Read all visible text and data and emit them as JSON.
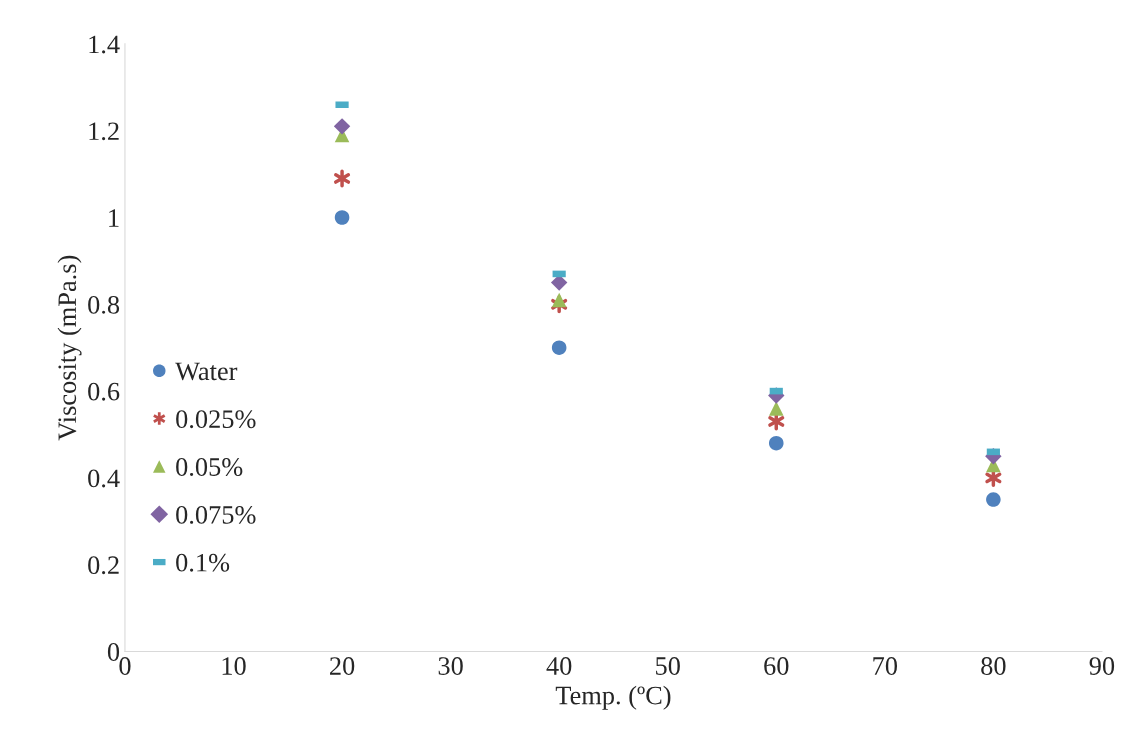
{
  "chart_data": {
    "type": "scatter",
    "xlabel": "Temp. (ºC)",
    "ylabel": "Viscosity (mPa.s)",
    "x": [
      20,
      40,
      60,
      80
    ],
    "series": [
      {
        "name": "Water",
        "color": "#4f81bd",
        "marker": "circle",
        "values": [
          1.0,
          0.7,
          0.48,
          0.35
        ]
      },
      {
        "name": "0.025%",
        "color": "#c0504d",
        "marker": "cross",
        "values": [
          1.09,
          0.8,
          0.53,
          0.4
        ]
      },
      {
        "name": "0.05%",
        "color": "#9bbb59",
        "marker": "triangle",
        "values": [
          1.19,
          0.81,
          0.56,
          0.43
        ]
      },
      {
        "name": "0.075%",
        "color": "#8064a2",
        "marker": "diamond",
        "values": [
          1.21,
          0.85,
          0.59,
          0.45
        ]
      },
      {
        "name": "0.1%",
        "color": "#4bacc6",
        "marker": "square",
        "values": [
          1.26,
          0.87,
          0.6,
          0.46
        ]
      }
    ],
    "xlim": [
      0,
      90
    ],
    "xticks": [
      0,
      10,
      20,
      30,
      40,
      50,
      60,
      70,
      80,
      90
    ],
    "ylim": [
      0,
      1.4
    ],
    "yticks": [
      0,
      {
        "value": 0.2,
        "label": "0.2"
      },
      {
        "value": 0.4,
        "label": "0.4"
      },
      {
        "value": 0.6,
        "label": "0.6"
      },
      {
        "value": 0.8,
        "label": "0.8"
      },
      1,
      {
        "value": 1.2,
        "label": "1.2"
      },
      {
        "value": 1.4,
        "label": "1.4"
      }
    ],
    "grid": false,
    "legend": "left"
  }
}
